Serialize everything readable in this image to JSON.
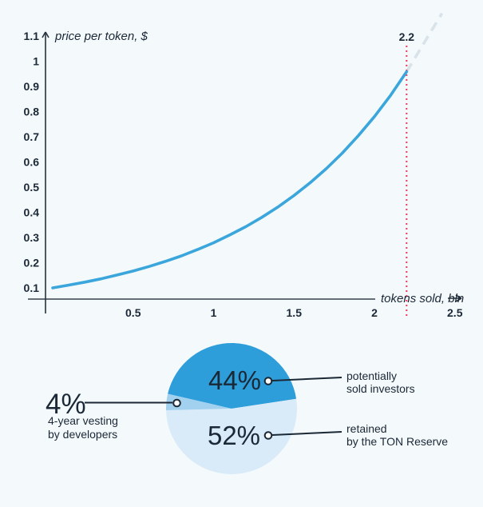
{
  "colors": {
    "background": "#f4f9fc",
    "text": "#1b2836",
    "x_axis": "#4f5b66",
    "y_axis": "#27323d"
  },
  "chart_data": [
    {
      "type": "line",
      "title": "",
      "xlabel": "tokens sold, bln",
      "ylabel": "price per token, $",
      "xticks": [
        0.5,
        1,
        1.5,
        2,
        2.5
      ],
      "yticks": [
        1.1,
        1,
        0.9,
        0.8,
        0.7,
        0.6,
        0.5,
        0.4,
        0.3,
        0.2,
        0.1
      ],
      "xlim": [
        0,
        2.55
      ],
      "ylim": [
        0.05,
        1.15
      ],
      "grid": false,
      "legend": "none",
      "series": [
        {
          "name": "price per token",
          "color": "#3aa6dc",
          "points": [
            [
              0.0,
              0.1
            ],
            [
              0.1,
              0.111
            ],
            [
              0.2,
              0.123
            ],
            [
              0.3,
              0.136
            ],
            [
              0.4,
              0.151
            ],
            [
              0.5,
              0.167
            ],
            [
              0.6,
              0.185
            ],
            [
              0.7,
              0.205
            ],
            [
              0.8,
              0.227
            ],
            [
              0.9,
              0.252
            ],
            [
              1.0,
              0.279
            ],
            [
              1.1,
              0.31
            ],
            [
              1.2,
              0.343
            ],
            [
              1.3,
              0.38
            ],
            [
              1.4,
              0.421
            ],
            [
              1.5,
              0.467
            ],
            [
              1.6,
              0.517
            ],
            [
              1.7,
              0.573
            ],
            [
              1.8,
              0.635
            ],
            [
              1.9,
              0.704
            ],
            [
              2.0,
              0.78
            ],
            [
              2.1,
              0.864
            ],
            [
              2.2,
              0.958
            ]
          ]
        }
      ],
      "projection": {
        "style": "dashed",
        "color": "#d9e3ea",
        "points": [
          [
            2.2,
            0.958
          ],
          [
            2.42,
            1.19
          ]
        ]
      },
      "marker": {
        "x": 2.2,
        "label": "2.2",
        "color": "#ee3a5f",
        "style": "dotted"
      }
    },
    {
      "type": "pie",
      "start_angle_deg": 283,
      "direction": "clockwise",
      "slices": [
        {
          "label": "potentially sold investors",
          "caption_lines": [
            "potentially",
            "sold investors"
          ],
          "value": 44,
          "value_label": "44%",
          "color": "#2e9edb",
          "value_label_color": "#ffffff"
        },
        {
          "label": "retained by the TON Reserve",
          "caption_lines": [
            "retained",
            "by the TON Reserve"
          ],
          "value": 52,
          "value_label": "52%",
          "color": "#d9ebf8",
          "value_label_color": "#1b2836"
        },
        {
          "label": "4-year vesting by developers",
          "caption_lines": [
            "4-year vesting",
            "by developers"
          ],
          "value": 4,
          "value_label": "4%",
          "color": "#a2d1ef",
          "value_label_color": "#1b2836"
        }
      ]
    }
  ]
}
